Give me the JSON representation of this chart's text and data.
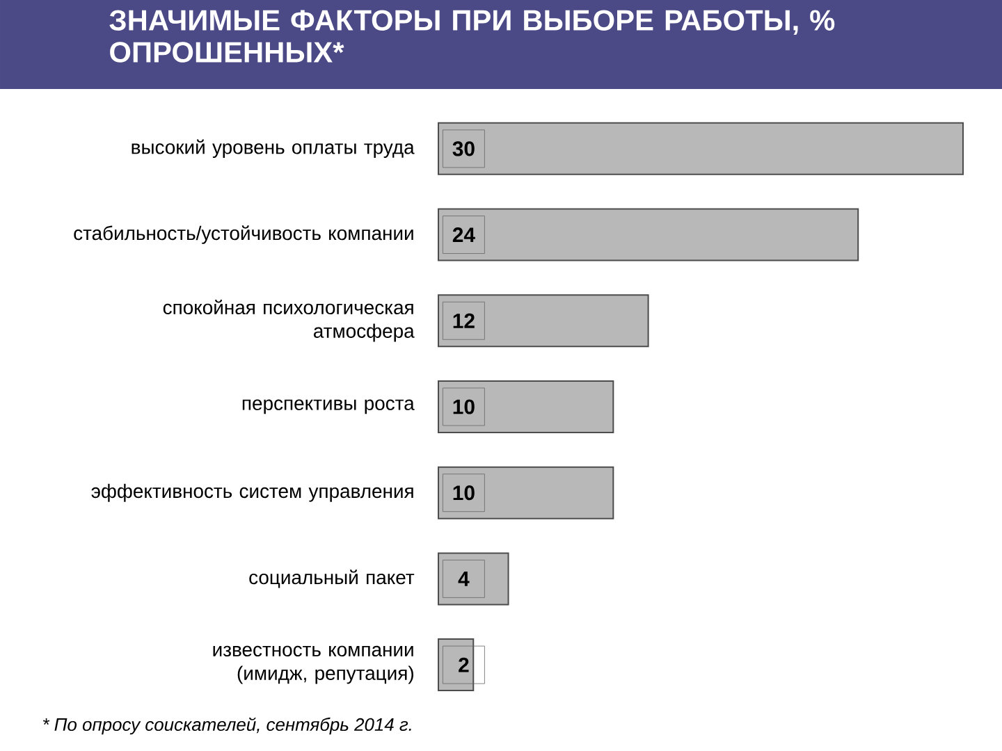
{
  "chart_data": {
    "type": "bar",
    "orientation": "horizontal",
    "title": "ЗНАЧИМЫЕ ФАКТОРЫ ПРИ ВЫБОРЕ РАБОТЫ, % ОПРОШЕННЫХ*",
    "categories": [
      "высокий уровень оплаты труда",
      "стабильность/устойчивость компании",
      "спокойная психологическая атмосфера",
      "перспективы роста",
      "эффективность систем управления",
      "социальный пакет",
      "известность компании (имидж, репутация)"
    ],
    "values": [
      30,
      24,
      12,
      10,
      10,
      4,
      2
    ],
    "color": "#b8b8b8",
    "data_labels": true,
    "annotations": [
      "* По опросу соискателей, сентябрь 2014 г."
    ]
  }
}
